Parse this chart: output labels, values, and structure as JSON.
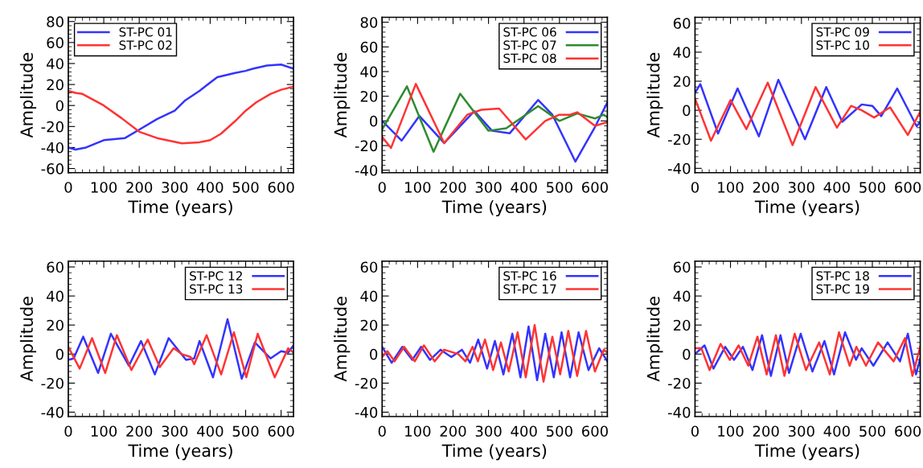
{
  "chart_data": [
    {
      "type": "line",
      "xlabel": "Time (years)",
      "ylabel": "Amplitude",
      "xlim": [
        0,
        635
      ],
      "xticks": [
        0,
        100,
        200,
        300,
        400,
        500,
        600
      ],
      "ylim": [
        -64,
        84
      ],
      "yticks": [
        -60,
        -40,
        -20,
        0,
        20,
        40,
        60,
        80
      ],
      "legend": "top left",
      "grid": false,
      "series": [
        {
          "name": "ST-PC 01",
          "color": "#3333ff",
          "x": [
            0,
            20,
            50,
            100,
            160,
            200,
            250,
            300,
            330,
            370,
            420,
            470,
            500,
            520,
            560,
            600,
            635
          ],
          "values": [
            -40,
            -42,
            -40,
            -33,
            -31,
            -23,
            -13,
            -5,
            5,
            14,
            27,
            31,
            33,
            35,
            38,
            39,
            35
          ]
        },
        {
          "name": "ST-PC 02",
          "color": "#ff3333",
          "x": [
            0,
            20,
            40,
            100,
            150,
            200,
            250,
            320,
            370,
            400,
            430,
            470,
            500,
            530,
            570,
            600,
            635
          ],
          "values": [
            14,
            12,
            11,
            0,
            -12,
            -25,
            -31,
            -36,
            -35,
            -33,
            -27,
            -15,
            -5,
            3,
            11,
            15,
            18
          ]
        }
      ]
    },
    {
      "type": "line",
      "xlabel": "Time (years)",
      "ylabel": "Amplitude",
      "xlim": [
        0,
        635
      ],
      "xticks": [
        0,
        100,
        200,
        300,
        400,
        500,
        600
      ],
      "ylim": [
        -42,
        84
      ],
      "yticks": [
        -40,
        -20,
        0,
        20,
        40,
        60,
        80
      ],
      "legend": "top right",
      "grid": false,
      "series": [
        {
          "name": "ST-PC 06",
          "color": "#3333ff",
          "x": [
            0,
            55,
            105,
            175,
            260,
            310,
            360,
            440,
            480,
            545,
            600,
            635
          ],
          "values": [
            0,
            -16,
            4,
            -18,
            8,
            -8,
            -10,
            17,
            5,
            -33,
            -5,
            15
          ]
        },
        {
          "name": "ST-PC 07",
          "color": "#2e8b2e",
          "x": [
            0,
            70,
            145,
            220,
            300,
            350,
            440,
            500,
            550,
            600,
            625,
            635
          ],
          "values": [
            -7,
            28,
            -25,
            22,
            -8,
            -6,
            12,
            0,
            6,
            2,
            5,
            3
          ]
        },
        {
          "name": "ST-PC 08",
          "color": "#ff3333",
          "x": [
            0,
            25,
            95,
            175,
            240,
            280,
            330,
            375,
            405,
            460,
            500,
            530,
            550,
            600,
            635
          ],
          "values": [
            -13,
            -22,
            30,
            -18,
            5,
            9,
            10,
            -5,
            -15,
            0,
            5,
            5,
            7,
            -4,
            -1
          ]
        }
      ]
    },
    {
      "type": "line",
      "xlabel": "Time (years)",
      "ylabel": "Amplitude",
      "xlim": [
        0,
        635
      ],
      "xticks": [
        0,
        100,
        200,
        300,
        400,
        500,
        600
      ],
      "ylim": [
        -43,
        64
      ],
      "yticks": [
        -40,
        -20,
        0,
        20,
        40,
        60
      ],
      "legend": "top right",
      "grid": false,
      "series": [
        {
          "name": "ST-PC 09",
          "color": "#3333ff",
          "x": [
            0,
            15,
            65,
            120,
            180,
            235,
            310,
            370,
            415,
            470,
            500,
            525,
            570,
            625,
            635
          ],
          "values": [
            12,
            18,
            -16,
            15,
            -18,
            21,
            -20,
            16,
            -8,
            4,
            3,
            -4,
            15,
            -11,
            -8
          ]
        },
        {
          "name": "ST-PC 10",
          "color": "#ff3333",
          "x": [
            0,
            45,
            100,
            145,
            205,
            275,
            340,
            400,
            440,
            470,
            505,
            550,
            600,
            635
          ],
          "values": [
            8,
            -21,
            7,
            -13,
            19,
            -24,
            16,
            -12,
            3,
            0,
            -5,
            2,
            -17,
            -1
          ]
        }
      ]
    },
    {
      "type": "line",
      "xlabel": "Time (years)",
      "ylabel": "Amplitude",
      "xlim": [
        0,
        635
      ],
      "xticks": [
        0,
        100,
        200,
        300,
        400,
        500,
        600
      ],
      "ylim": [
        -43,
        64
      ],
      "yticks": [
        -40,
        -20,
        0,
        20,
        40,
        60
      ],
      "legend": "top right",
      "grid": false,
      "series": [
        {
          "name": "ST-PC 12",
          "color": "#3333ff",
          "x": [
            0,
            15,
            42,
            84,
            120,
            171,
            205,
            244,
            283,
            332,
            355,
            370,
            408,
            449,
            489,
            526,
            570,
            600,
            620,
            635
          ],
          "values": [
            -4,
            -3,
            12,
            -13,
            14,
            -8,
            9,
            -14,
            11,
            -4,
            -3,
            9,
            -16,
            24,
            -17,
            8,
            -3,
            2,
            1,
            6
          ]
        },
        {
          "name": "ST-PC 13",
          "color": "#ff3333",
          "x": [
            0,
            32,
            67,
            104,
            137,
            178,
            224,
            258,
            297,
            320,
            345,
            355,
            390,
            431,
            467,
            502,
            534,
            582,
            620,
            635
          ],
          "values": [
            5,
            -10,
            11,
            -13,
            13,
            -11,
            10,
            -9,
            4,
            0,
            -2,
            -7,
            13,
            -14,
            15,
            -16,
            14,
            -16,
            4,
            1
          ]
        }
      ]
    },
    {
      "type": "line",
      "xlabel": "Time (years)",
      "ylabel": "Amplitude",
      "xlim": [
        0,
        635
      ],
      "xticks": [
        0,
        100,
        200,
        300,
        400,
        500,
        600
      ],
      "ylim": [
        -43,
        64
      ],
      "yticks": [
        -40,
        -20,
        0,
        20,
        40,
        60
      ],
      "legend": "top right",
      "grid": false,
      "series": [
        {
          "name": "ST-PC 16",
          "color": "#3333ff",
          "x": [
            0,
            27,
            57,
            85,
            110,
            135,
            165,
            195,
            225,
            248,
            271,
            296,
            318,
            342,
            367,
            390,
            413,
            437,
            460,
            484,
            506,
            530,
            554,
            582,
            612,
            635
          ],
          "values": [
            5,
            -6,
            5,
            -4,
            5,
            -4,
            3,
            -2,
            3,
            -6,
            10,
            -10,
            9,
            -14,
            14,
            -16,
            19,
            -18,
            14,
            -16,
            15,
            -16,
            15,
            -11,
            4,
            -5
          ]
        },
        {
          "name": "ST-PC 17",
          "color": "#ff3333",
          "x": [
            0,
            15,
            35,
            62,
            92,
            118,
            148,
            175,
            215,
            235,
            255,
            270,
            290,
            313,
            335,
            357,
            382,
            405,
            430,
            455,
            480,
            502,
            525,
            550,
            575,
            600,
            625,
            635
          ],
          "values": [
            -2,
            2,
            -5,
            5,
            -5,
            6,
            -5,
            3,
            0,
            -5,
            5,
            -5,
            10,
            -11,
            8,
            -12,
            15,
            -16,
            20,
            -19,
            12,
            -14,
            16,
            -15,
            16,
            -12,
            3,
            1
          ]
        }
      ]
    },
    {
      "type": "line",
      "xlabel": "Time (years)",
      "ylabel": "Amplitude",
      "xlim": [
        0,
        635
      ],
      "xticks": [
        0,
        100,
        200,
        300,
        400,
        500,
        600
      ],
      "ylim": [
        -43,
        64
      ],
      "yticks": [
        -40,
        -20,
        0,
        20,
        40,
        60
      ],
      "legend": "top right",
      "grid": false,
      "series": [
        {
          "name": "ST-PC 18",
          "color": "#3333ff",
          "x": [
            0,
            27,
            52,
            85,
            110,
            135,
            162,
            189,
            214,
            241,
            265,
            298,
            331,
            365,
            392,
            423,
            454,
            470,
            503,
            543,
            578,
            600,
            623,
            635
          ],
          "values": [
            0,
            6,
            -10,
            5,
            -4,
            5,
            -11,
            13,
            -15,
            13,
            -13,
            14,
            -12,
            9,
            -14,
            15,
            -4,
            4,
            -8,
            8,
            -5,
            14,
            -14,
            -3
          ]
        },
        {
          "name": "ST-PC 19",
          "color": "#ff3333",
          "x": [
            0,
            18,
            41,
            72,
            98,
            123,
            150,
            176,
            202,
            228,
            252,
            281,
            313,
            350,
            380,
            406,
            436,
            455,
            482,
            516,
            560,
            592,
            613,
            635
          ],
          "values": [
            4,
            4,
            -11,
            7,
            -4,
            6,
            -8,
            12,
            -14,
            13,
            -15,
            14,
            -11,
            8,
            -14,
            15,
            -8,
            5,
            -8,
            8,
            -5,
            11,
            -15,
            5
          ]
        }
      ]
    }
  ]
}
